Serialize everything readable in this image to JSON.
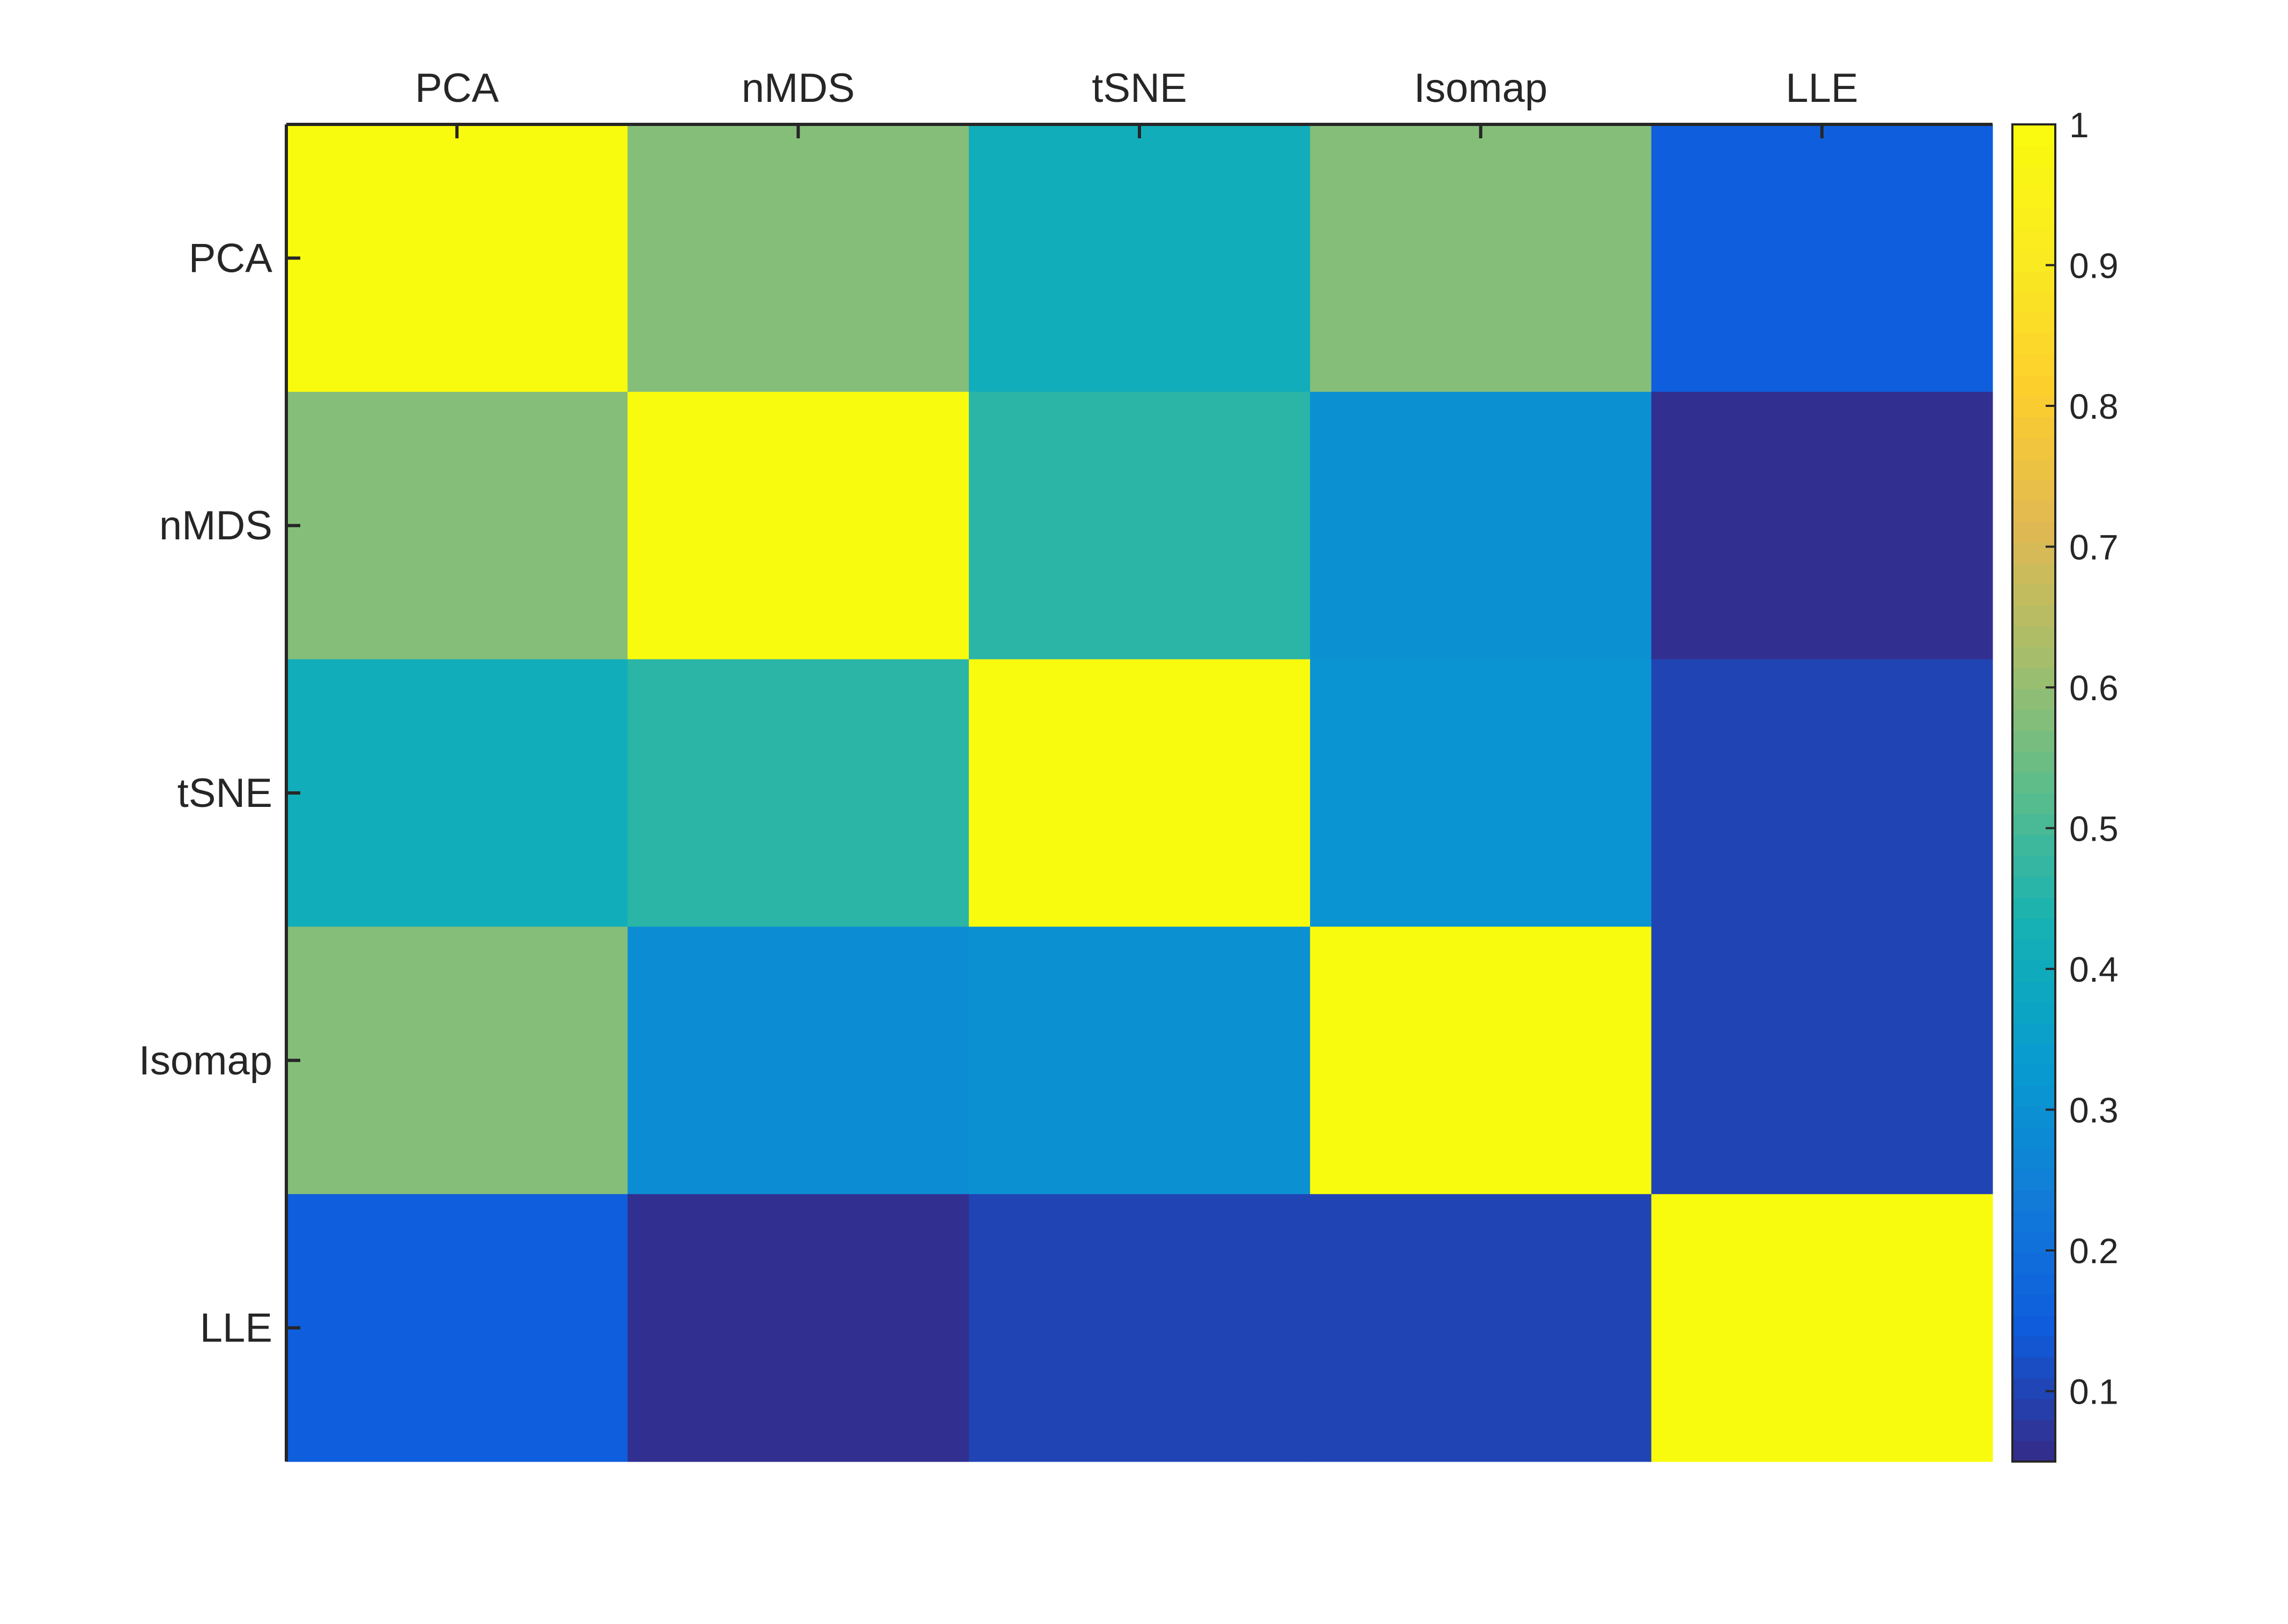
{
  "chart_data": {
    "type": "heatmap",
    "title": "",
    "xlabel": "",
    "ylabel": "",
    "x_categories": [
      "PCA",
      "nMDS",
      "tSNE",
      "Isomap",
      "LLE"
    ],
    "y_categories": [
      "PCA",
      "nMDS",
      "tSNE",
      "Isomap",
      "LLE"
    ],
    "x_axis_position": "top",
    "values": [
      [
        1.0,
        0.58,
        0.41,
        0.58,
        0.15
      ],
      [
        0.58,
        1.0,
        0.46,
        0.3,
        0.06
      ],
      [
        0.41,
        0.46,
        1.0,
        0.31,
        0.1
      ],
      [
        0.58,
        0.29,
        0.3,
        1.0,
        0.1
      ],
      [
        0.15,
        0.06,
        0.1,
        0.1,
        1.0
      ]
    ],
    "colorbar": {
      "colormap": "parula",
      "range": [
        0.05,
        1.0
      ],
      "ticks": [
        0.1,
        0.2,
        0.3,
        0.4,
        0.5,
        0.6,
        0.7,
        0.8,
        0.9,
        1
      ],
      "tick_labels": [
        "0.1",
        "0.2",
        "0.3",
        "0.4",
        "0.5",
        "0.6",
        "0.7",
        "0.8",
        "0.9",
        "1"
      ],
      "position": "right"
    },
    "grid": false
  }
}
